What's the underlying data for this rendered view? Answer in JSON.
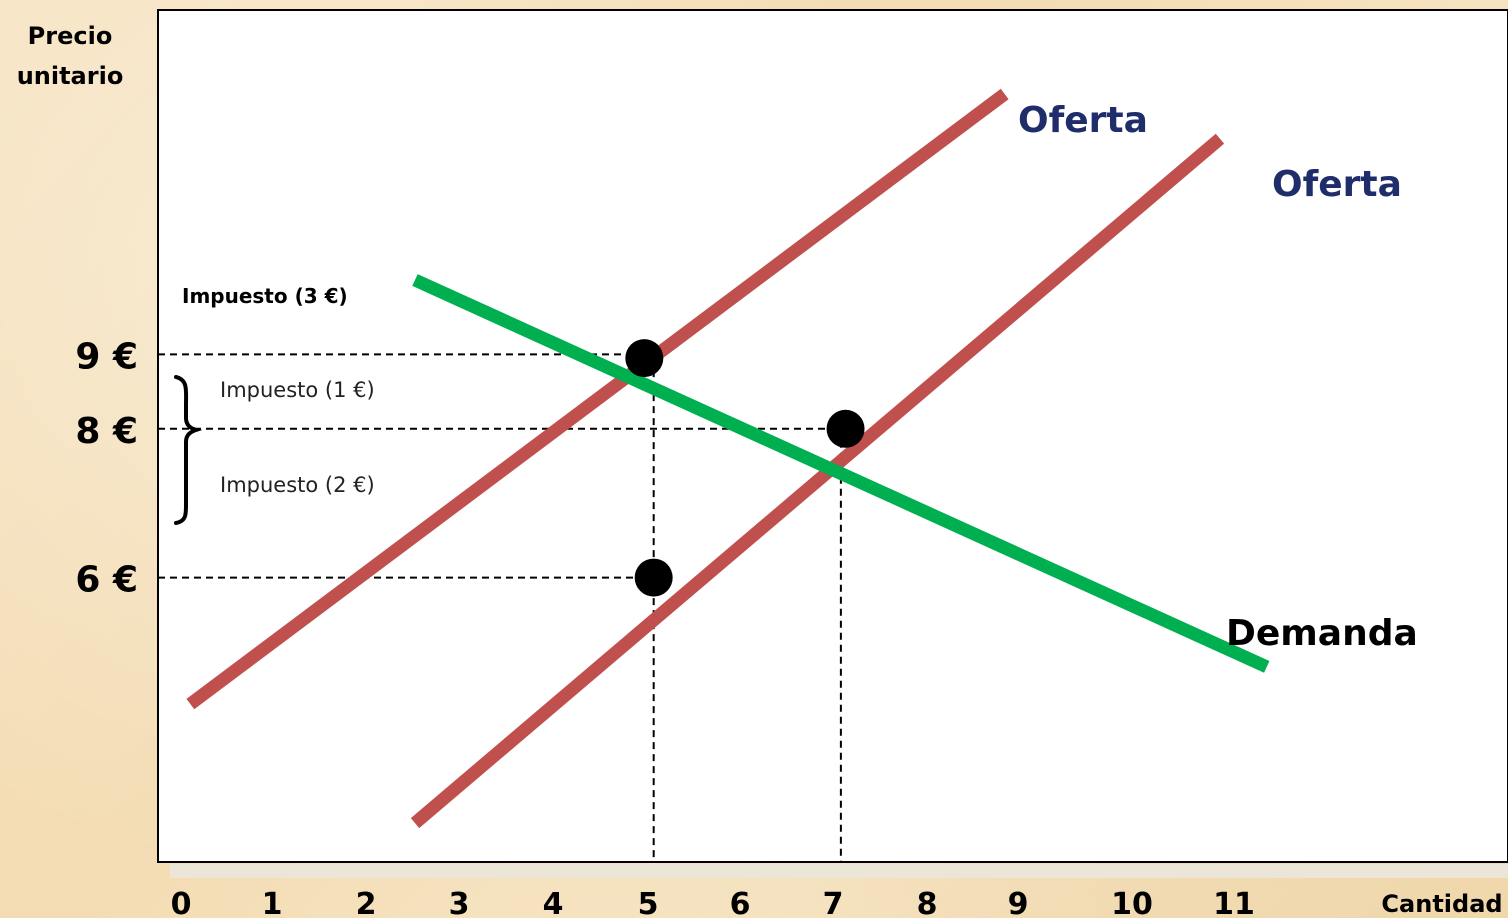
{
  "chart_data": {
    "type": "line",
    "ylabel": "Precio\nunitario",
    "xlabel": "Cantidad",
    "x_ticks": [
      "0",
      "1",
      "2",
      "3",
      "4",
      "5",
      "6",
      "7",
      "8",
      "9",
      "10",
      "11"
    ],
    "y_ticks": [
      {
        "value": 9,
        "label": "9 €"
      },
      {
        "value": 8,
        "label": "8 €"
      },
      {
        "value": 6,
        "label": "6 €"
      }
    ],
    "series": [
      {
        "name": "Oferta",
        "color": "#c0504d",
        "points": [
          [
            0.1,
            4.3
          ],
          [
            8.8,
            12.5
          ]
        ]
      },
      {
        "name": "Oferta",
        "color": "#c0504d",
        "points": [
          [
            2.5,
            2.7
          ],
          [
            11.1,
            11.9
          ]
        ]
      },
      {
        "name": "Demanda",
        "color": "#00b050",
        "points": [
          [
            2.5,
            10.0
          ],
          [
            11.6,
            4.8
          ]
        ]
      }
    ],
    "equilibrium_points": [
      [
        4.95,
        8.95
      ],
      [
        7.1,
        8.0
      ],
      [
        5.05,
        6.0
      ]
    ],
    "reference_lines": {
      "horizontal": [
        9,
        8,
        6
      ],
      "vertical": [
        5,
        7
      ]
    },
    "annotations": {
      "tax_total": "Impuesto (3 €)",
      "tax_part1": "Impuesto (1 €)",
      "tax_part2": "Impuesto (2 €)"
    },
    "colors": {
      "supply": "#c0504d",
      "demand": "#00b050",
      "supply_label": "#1f2d6b"
    }
  }
}
